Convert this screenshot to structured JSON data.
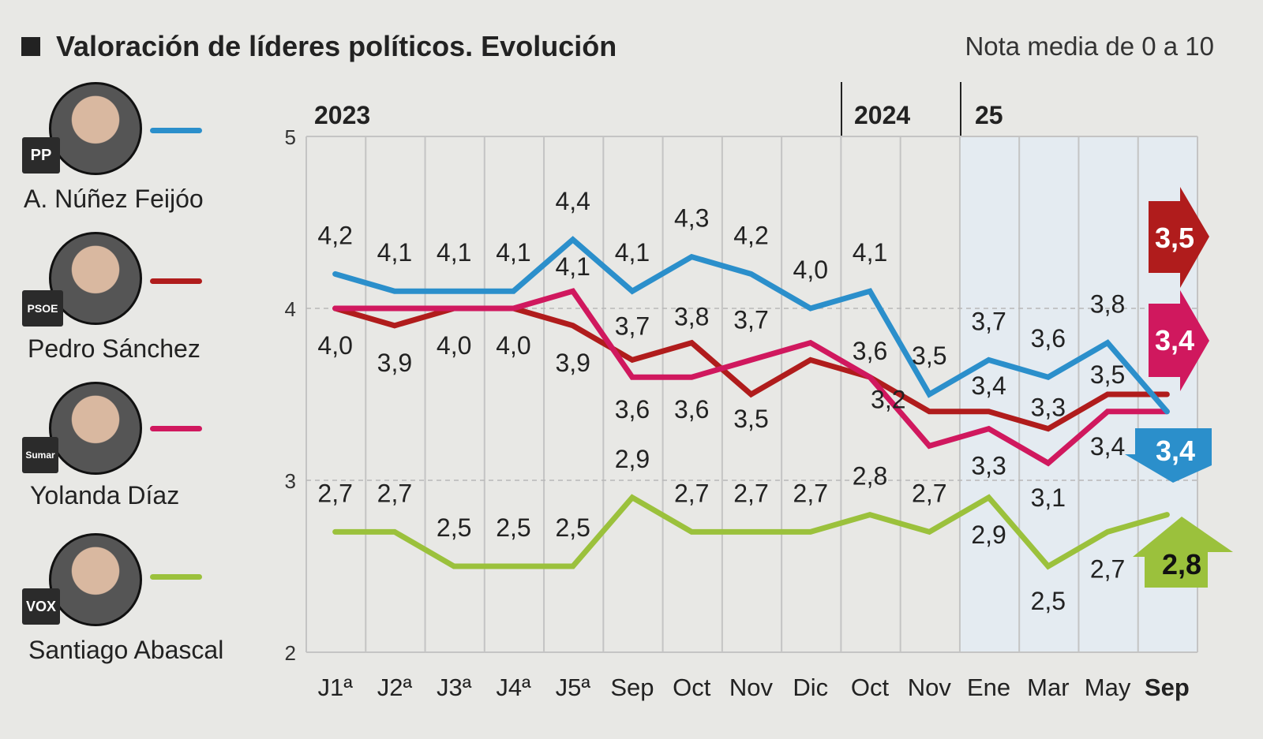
{
  "header": {
    "title": "Valoración de líderes políticos. Evolución",
    "subtitle": "Nota media de 0 a 10"
  },
  "legend": [
    {
      "name": "A. Núñez Feijóo",
      "party_logo": "PP",
      "color": "#2b8fcb"
    },
    {
      "name": "Pedro Sánchez",
      "party_logo": "PSOE",
      "color": "#b01c1c"
    },
    {
      "name": "Yolanda Díaz",
      "party_logo": "Sumar",
      "color": "#d0185e"
    },
    {
      "name": "Santiago Abascal",
      "party_logo": "VOX",
      "color": "#9bc13c"
    }
  ],
  "chart_data": {
    "type": "line",
    "title": "Valoración de líderes políticos. Evolución",
    "subtitle": "Nota media de 0 a 10",
    "years": [
      {
        "label": "2023"
      },
      {
        "label": "2024"
      },
      {
        "label": "25"
      }
    ],
    "categories": [
      "J1ª",
      "J2ª",
      "J3ª",
      "J4ª",
      "J5ª",
      "Sep",
      "Oct",
      "Nov",
      "Dic",
      "Oct",
      "Nov",
      "Ene",
      "Mar",
      "May",
      "Sep"
    ],
    "yticks": [
      "5",
      "4",
      "3",
      "2"
    ],
    "ylim": [
      2,
      5
    ],
    "grid": true,
    "highlight_last": "Sep",
    "series": [
      {
        "name": "A. Núñez Feijóo",
        "color": "#2b8fcb",
        "values": [
          4.2,
          4.1,
          4.1,
          4.1,
          4.4,
          4.1,
          4.3,
          4.2,
          4.0,
          4.1,
          3.5,
          3.7,
          3.6,
          3.8,
          3.4
        ],
        "trend": "down"
      },
      {
        "name": "Pedro Sánchez",
        "color": "#b01c1c",
        "values": [
          4.0,
          3.9,
          4.0,
          4.0,
          3.9,
          3.7,
          3.8,
          3.5,
          3.7,
          3.6,
          3.4,
          3.4,
          3.3,
          3.5,
          3.5
        ],
        "trend": "flat"
      },
      {
        "name": "Yolanda Díaz",
        "color": "#d0185e",
        "values": [
          4.0,
          4.0,
          4.0,
          4.0,
          4.1,
          3.6,
          3.6,
          3.7,
          3.8,
          3.6,
          3.2,
          3.3,
          3.1,
          3.4,
          3.4
        ],
        "trend": "flat"
      },
      {
        "name": "Santiago Abascal",
        "color": "#9bc13c",
        "values": [
          2.7,
          2.7,
          2.5,
          2.5,
          2.5,
          2.9,
          2.7,
          2.7,
          2.7,
          2.8,
          2.7,
          2.9,
          2.5,
          2.7,
          2.8
        ],
        "trend": "up"
      }
    ]
  }
}
